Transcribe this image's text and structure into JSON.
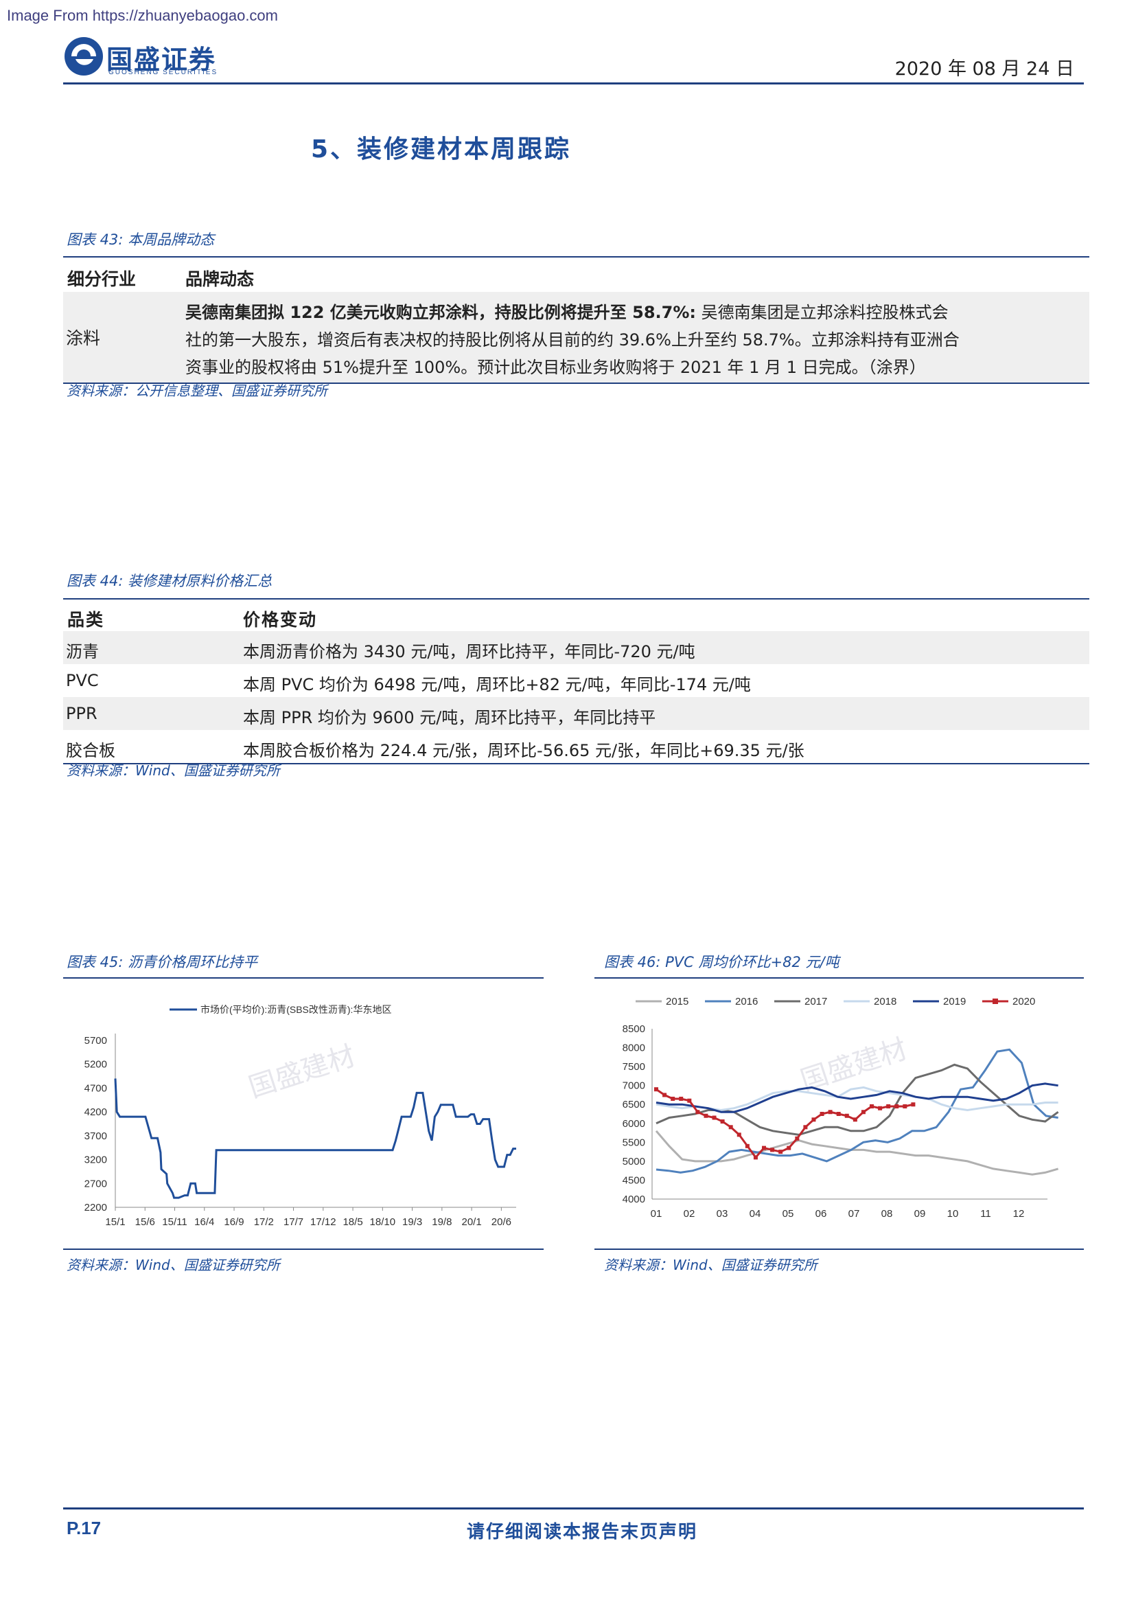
{
  "watermark_source": "Image From https://zhuanyebaogao.com",
  "header": {
    "logo_text": "国盛证券",
    "logo_sub": "GUOSHENG SECURITIES",
    "date": "2020 年 08 月 24 日"
  },
  "section_title": "5、装修建材本周跟踪",
  "fig43": {
    "caption": "图表 43:  本周品牌动态",
    "headers": [
      "细分行业",
      "品牌动态"
    ],
    "row_category": "涂料",
    "row_bold": "吴德南集团拟 122 亿美元收购立邦涂料，持股比例将提升至 58.7%:",
    "row_line1_rest": " 吴德南集团是立邦涂料控股株式会",
    "row_line2": "社的第一大股东，增资后有表决权的持股比例将从目前的约 39.6%上升至约 58.7%。立邦涂料持有亚洲合",
    "row_line3": "资事业的股权将由 51%提升至 100%。预计此次目标业务收购将于 2021 年 1 月 1 日完成。（涂界）",
    "source": "资料来源：公开信息整理、国盛证券研究所"
  },
  "fig44": {
    "caption": "图表 44:  装修建材原料价格汇总",
    "headers": [
      "品类",
      "价格变动"
    ],
    "rows": [
      {
        "category": "沥青",
        "change": "本周沥青价格为 3430 元/吨，周环比持平，年同比-720 元/吨"
      },
      {
        "category": "PVC",
        "change": "本周 PVC 均价为 6498 元/吨，周环比+82 元/吨，年同比-174 元/吨"
      },
      {
        "category": "PPR",
        "change": "本周 PPR 均价为 9600 元/吨，周环比持平，年同比持平"
      },
      {
        "category": "胶合板",
        "change": "本周胶合板价格为 224.4 元/张，周环比-56.65 元/张，年同比+69.35 元/张"
      }
    ],
    "source": "资料来源：Wind、国盛证券研究所"
  },
  "fig45": {
    "caption": "图表 45:  沥青价格周环比持平",
    "source": "资料来源：Wind、国盛证券研究所",
    "watermark": "国盛建材"
  },
  "fig46": {
    "caption": "图表 46:  PVC 周均价环比+82 元/吨",
    "source": "资料来源：Wind、国盛证券研究所",
    "watermark": "国盛建材"
  },
  "footer": {
    "page": "P.17",
    "disclaimer": "请仔细阅读本报告末页声明"
  },
  "chart_data": [
    {
      "type": "line",
      "legend": [
        "市场价(平均价):沥青(SBS改性沥青):华东地区"
      ],
      "color": "#1f4e9a",
      "xticks": [
        "15/1",
        "15/6",
        "15/11",
        "16/4",
        "16/9",
        "17/2",
        "17/7",
        "17/12",
        "18/5",
        "18/10",
        "19/3",
        "19/8",
        "20/1",
        "20/6"
      ],
      "yticks": [
        2200,
        2700,
        3200,
        3700,
        4200,
        4700,
        5200,
        5700
      ],
      "ylim": [
        2200,
        5700
      ],
      "series": [
        {
          "name": "市场价(平均价):沥青(SBS改性沥青):华东地区",
          "x": [
            0,
            0.1,
            0.3,
            1.0,
            1.6,
            2.0,
            2.4,
            2.45,
            2.8,
            2.9,
            3.0,
            3.05,
            3.4,
            3.45,
            3.8,
            3.9,
            4.0,
            4.2,
            4.6,
            4.8,
            5.0,
            5.3,
            5.4,
            5.8,
            5.9,
            6.2,
            6.3,
            6.6,
            6.7,
            7.0,
            7.4,
            7.8,
            8.2,
            8.6,
            9.0,
            9.3,
            9.6,
            9.9,
            10.3,
            10.6,
            10.9,
            11.2,
            11.6,
            11.8,
            12.0,
            12.2,
            12.5,
            12.8,
            12.95,
            13.0,
            13.2,
            13.4,
            13.6,
            13.8,
            14.0,
            14.2,
            14.4,
            14.6,
            14.8,
            15.0,
            15.2,
            15.4,
            15.6,
            15.8,
            16.0,
            16.2,
            16.4,
            16.6,
            16.8,
            17.0,
            17.2,
            17.4,
            17.6,
            17.8,
            18.0,
            18.2,
            18.4,
            18.6,
            18.8,
            19.0,
            19.2,
            19.4,
            19.6,
            19.8,
            20.0,
            20.2,
            20.4,
            20.6,
            20.8,
            21.0,
            21.2,
            21.4,
            21.6,
            21.8,
            22.0,
            22.2,
            22.4,
            22.6,
            22.8,
            23.0,
            23.2,
            23.4,
            23.6,
            23.8,
            24.0,
            24.2,
            24.4,
            24.6,
            24.8,
            25.0,
            25.2,
            25.4,
            25.6,
            25.8,
            26.0,
            26.2,
            26.4,
            26.6
          ],
          "y": [
            4900,
            4200,
            4100,
            4100,
            4100,
            4100,
            3650,
            3650,
            3650,
            3500,
            3350,
            3000,
            2900,
            2700,
            2500,
            2400,
            2400,
            2400,
            2450,
            2450,
            2700,
            2700,
            2500,
            2500,
            2500,
            2500,
            2500,
            2500,
            3400,
            3400,
            3400,
            3400,
            3400,
            3400,
            3400,
            3400,
            3400,
            3400,
            3400,
            3400,
            3400,
            3400,
            3400,
            3400,
            3400,
            3400,
            3400,
            3400,
            3400,
            3400,
            3400,
            3400,
            3400,
            3400,
            3400,
            3400,
            3400,
            3400,
            3400,
            3400,
            3400,
            3400,
            3400,
            3400,
            3400,
            3400,
            3400,
            3400,
            3400,
            3400,
            3400,
            3400,
            3400,
            3400,
            3400,
            3400,
            3400,
            3600,
            3850,
            4100,
            4100,
            4100,
            4100,
            4300,
            4600,
            4600,
            4600,
            4200,
            3800,
            3600,
            4100,
            4200,
            4350,
            4350,
            4350,
            4350,
            4350,
            4100,
            4100,
            4100,
            4100,
            4100,
            4150,
            4150,
            3950,
            3950,
            4050,
            4050,
            4050,
            3600,
            3200,
            3050,
            3050,
            3050,
            3300,
            3300,
            3430,
            3430
          ]
        }
      ]
    },
    {
      "type": "line",
      "xticks": [
        "01",
        "02",
        "03",
        "04",
        "05",
        "06",
        "07",
        "08",
        "09",
        "10",
        "11",
        "12"
      ],
      "yticks": [
        4000,
        4500,
        5000,
        5500,
        6000,
        6500,
        7000,
        7500,
        8000,
        8500
      ],
      "ylim": [
        4000,
        8500
      ],
      "series": [
        {
          "name": "2015",
          "color": "#b0b0b0",
          "y": [
            5800,
            5400,
            5050,
            5000,
            5000,
            5000,
            5050,
            5150,
            5250,
            5350,
            5450,
            5550,
            5450,
            5400,
            5350,
            5300,
            5300,
            5250,
            5250,
            5200,
            5150,
            5150,
            5100,
            5050,
            5000,
            4900,
            4800,
            4750,
            4700,
            4650,
            4700,
            4800
          ]
        },
        {
          "name": "2016",
          "color": "#4f81bd",
          "y": [
            4780,
            4750,
            4700,
            4750,
            4850,
            5000,
            5250,
            5300,
            5250,
            5200,
            5150,
            5150,
            5200,
            5100,
            5000,
            5150,
            5300,
            5500,
            5550,
            5500,
            5600,
            5800,
            5800,
            5900,
            6300,
            6900,
            6950,
            7400,
            7900,
            7950,
            7600,
            6500,
            6200,
            6150
          ]
        },
        {
          "name": "2017",
          "color": "#6b6b6b",
          "y": [
            6000,
            6150,
            6200,
            6250,
            6350,
            6350,
            6300,
            6100,
            5900,
            5800,
            5750,
            5700,
            5800,
            5900,
            5900,
            5800,
            5800,
            5900,
            6200,
            6800,
            7200,
            7300,
            7400,
            7550,
            7450,
            7100,
            6800,
            6500,
            6200,
            6100,
            6050,
            6300
          ]
        },
        {
          "name": "2018",
          "color": "#c6d9ec",
          "y": [
            6500,
            6450,
            6400,
            6450,
            6400,
            6350,
            6400,
            6500,
            6650,
            6800,
            6850,
            6850,
            6800,
            6750,
            6700,
            6900,
            6950,
            6850,
            6800,
            6750,
            6700,
            6650,
            6500,
            6400,
            6350,
            6400,
            6450,
            6500,
            6500,
            6500,
            6550,
            6550
          ]
        },
        {
          "name": "2019",
          "color": "#1f3f8f",
          "y": [
            6550,
            6500,
            6500,
            6450,
            6400,
            6300,
            6300,
            6400,
            6550,
            6700,
            6800,
            6900,
            6950,
            6850,
            6700,
            6650,
            6700,
            6750,
            6850,
            6800,
            6700,
            6650,
            6700,
            6700,
            6700,
            6650,
            6600,
            6650,
            6800,
            7000,
            7050,
            7000
          ]
        },
        {
          "name": "2020",
          "color": "#c0262c",
          "y": [
            6900,
            6750,
            6650,
            6650,
            6600,
            6300,
            6200,
            6150,
            6050,
            5900,
            5700,
            5400,
            5100,
            5350,
            5300,
            5250,
            5350,
            5600,
            5900,
            6100,
            6250,
            6300,
            6250,
            6200,
            6100,
            6300,
            6450,
            6400,
            6450,
            6450,
            6450,
            6500
          ]
        }
      ]
    }
  ]
}
